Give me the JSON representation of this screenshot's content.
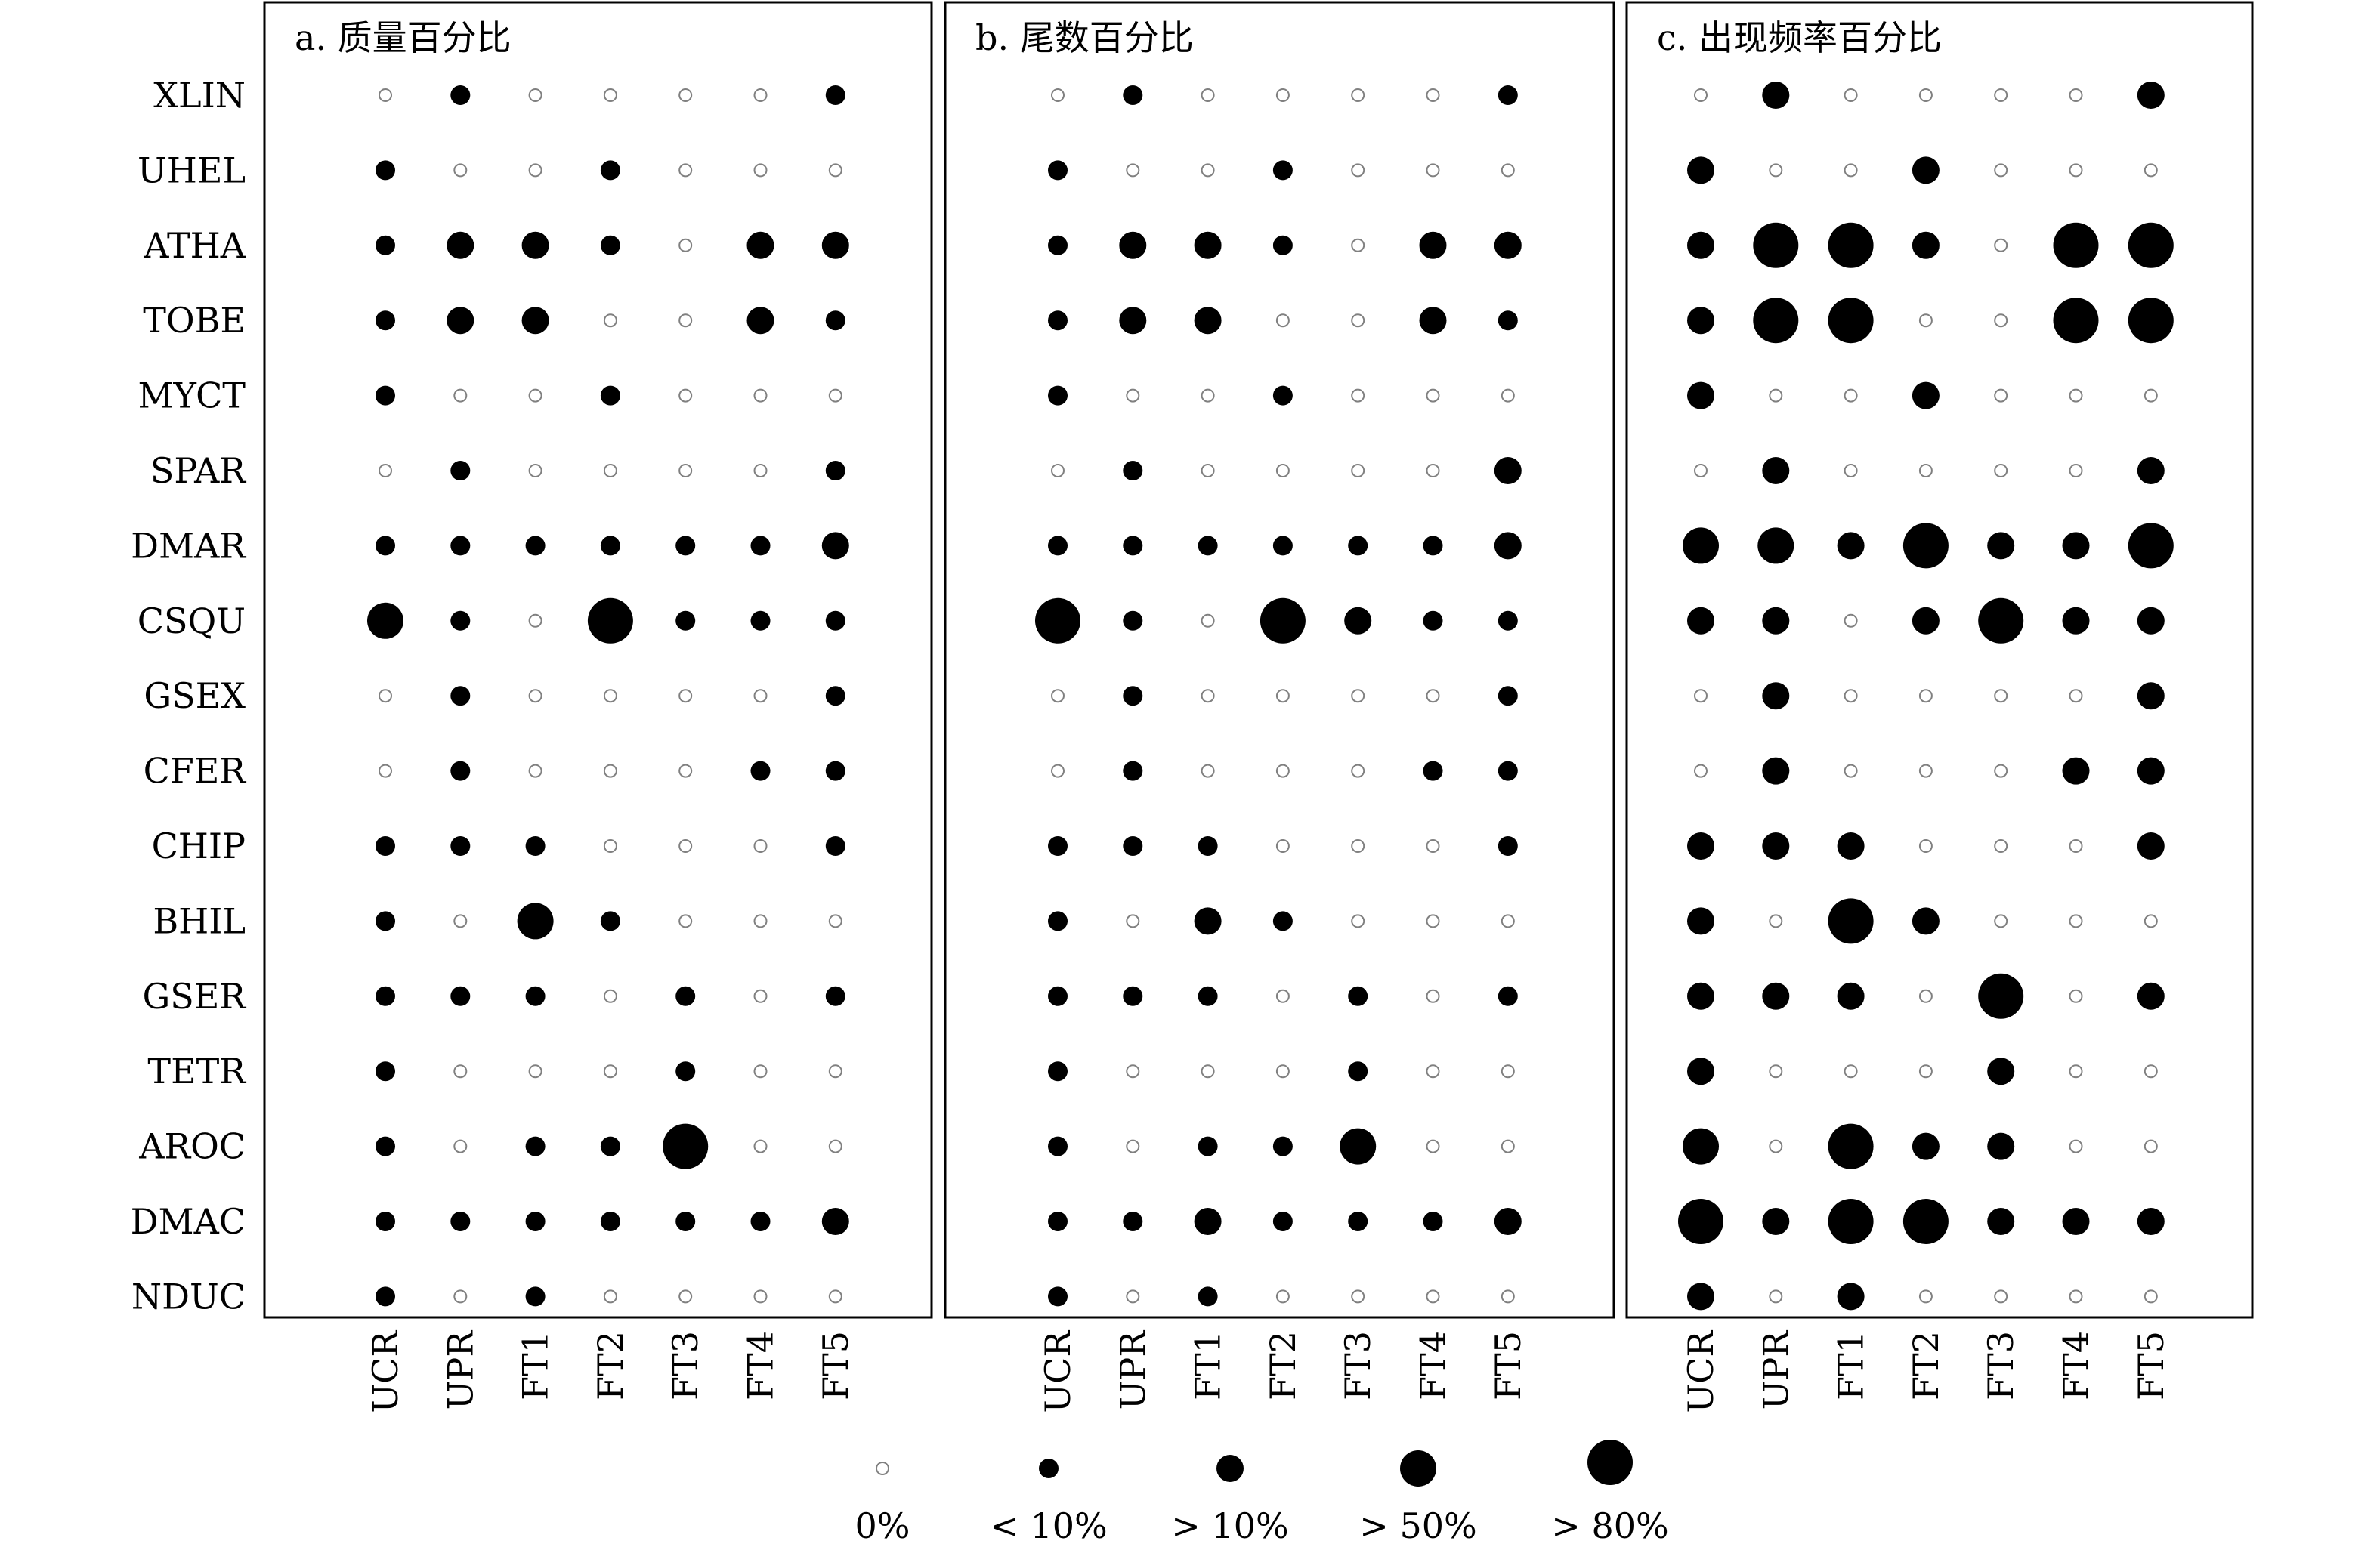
{
  "chart_data": {
    "type": "scatter",
    "description_type": "dot-matrix",
    "rows": [
      "XLIN",
      "UHEL",
      "ATHA",
      "TOBE",
      "MYCT",
      "SPAR",
      "DMAR",
      "CSQU",
      "GSEX",
      "CFER",
      "CHIP",
      "BHIL",
      "GSER",
      "TETR",
      "AROC",
      "DMAC",
      "NDUC"
    ],
    "columns": [
      "UCR",
      "UPR",
      "FT1",
      "FT2",
      "FT3",
      "FT4",
      "FT5"
    ],
    "categories_legend": [
      {
        "level": 0,
        "label": "0%"
      },
      {
        "level": 1,
        "label": "< 10%"
      },
      {
        "level": 2,
        "label": "> 10%"
      },
      {
        "level": 3,
        "label": "> 50%"
      },
      {
        "level": 4,
        "label": "> 80%"
      }
    ],
    "colors": {
      "filled": "#000000",
      "empty_stroke": "#808080",
      "frame": "#000000"
    },
    "panels": [
      {
        "title": "a. 质量百分比",
        "levels": [
          [
            0,
            1,
            0,
            0,
            0,
            0,
            1
          ],
          [
            1,
            0,
            0,
            1,
            0,
            0,
            0
          ],
          [
            1,
            2,
            2,
            1,
            0,
            2,
            2
          ],
          [
            1,
            2,
            2,
            0,
            0,
            2,
            1
          ],
          [
            1,
            0,
            0,
            1,
            0,
            0,
            0
          ],
          [
            0,
            1,
            0,
            0,
            0,
            0,
            1
          ],
          [
            1,
            1,
            1,
            1,
            1,
            1,
            2
          ],
          [
            3,
            1,
            0,
            4,
            1,
            1,
            1
          ],
          [
            0,
            1,
            0,
            0,
            0,
            0,
            1
          ],
          [
            0,
            1,
            0,
            0,
            0,
            1,
            1
          ],
          [
            1,
            1,
            1,
            0,
            0,
            0,
            1
          ],
          [
            1,
            0,
            3,
            1,
            0,
            0,
            0
          ],
          [
            1,
            1,
            1,
            0,
            1,
            0,
            1
          ],
          [
            1,
            0,
            0,
            0,
            1,
            0,
            0
          ],
          [
            1,
            0,
            1,
            1,
            4,
            0,
            0
          ],
          [
            1,
            1,
            1,
            1,
            1,
            1,
            2
          ],
          [
            1,
            0,
            1,
            0,
            0,
            0,
            0
          ]
        ]
      },
      {
        "title": "b. 尾数百分比",
        "levels": [
          [
            0,
            1,
            0,
            0,
            0,
            0,
            1
          ],
          [
            1,
            0,
            0,
            1,
            0,
            0,
            0
          ],
          [
            1,
            2,
            2,
            1,
            0,
            2,
            2
          ],
          [
            1,
            2,
            2,
            0,
            0,
            2,
            1
          ],
          [
            1,
            0,
            0,
            1,
            0,
            0,
            0
          ],
          [
            0,
            1,
            0,
            0,
            0,
            0,
            2
          ],
          [
            1,
            1,
            1,
            1,
            1,
            1,
            2
          ],
          [
            4,
            1,
            0,
            4,
            2,
            1,
            1
          ],
          [
            0,
            1,
            0,
            0,
            0,
            0,
            1
          ],
          [
            0,
            1,
            0,
            0,
            0,
            1,
            1
          ],
          [
            1,
            1,
            1,
            0,
            0,
            0,
            1
          ],
          [
            1,
            0,
            2,
            1,
            0,
            0,
            0
          ],
          [
            1,
            1,
            1,
            0,
            1,
            0,
            1
          ],
          [
            1,
            0,
            0,
            0,
            1,
            0,
            0
          ],
          [
            1,
            0,
            1,
            1,
            3,
            0,
            0
          ],
          [
            1,
            1,
            2,
            1,
            1,
            1,
            2
          ],
          [
            1,
            0,
            1,
            0,
            0,
            0,
            0
          ]
        ]
      },
      {
        "title": "c. 出现频率百分比",
        "levels": [
          [
            0,
            2,
            0,
            0,
            0,
            0,
            2
          ],
          [
            2,
            0,
            0,
            2,
            0,
            0,
            0
          ],
          [
            2,
            4,
            4,
            2,
            0,
            4,
            4
          ],
          [
            2,
            4,
            4,
            0,
            0,
            4,
            4
          ],
          [
            2,
            0,
            0,
            2,
            0,
            0,
            0
          ],
          [
            0,
            2,
            0,
            0,
            0,
            0,
            2
          ],
          [
            3,
            3,
            2,
            4,
            2,
            2,
            4
          ],
          [
            2,
            2,
            0,
            2,
            4,
            2,
            2
          ],
          [
            0,
            2,
            0,
            0,
            0,
            0,
            2
          ],
          [
            0,
            2,
            0,
            0,
            0,
            2,
            2
          ],
          [
            2,
            2,
            2,
            0,
            0,
            0,
            2
          ],
          [
            2,
            0,
            4,
            2,
            0,
            0,
            0
          ],
          [
            2,
            2,
            2,
            0,
            4,
            0,
            2
          ],
          [
            2,
            0,
            0,
            0,
            2,
            0,
            0
          ],
          [
            3,
            0,
            4,
            2,
            2,
            0,
            0
          ],
          [
            4,
            2,
            4,
            4,
            2,
            2,
            2
          ],
          [
            2,
            0,
            2,
            0,
            0,
            0,
            0
          ]
        ]
      }
    ]
  }
}
